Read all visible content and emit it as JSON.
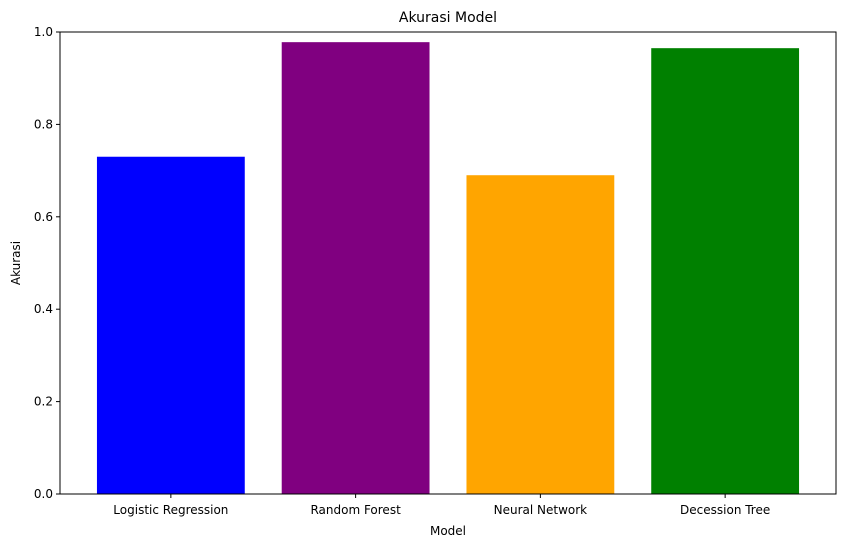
{
  "chart_data": {
    "type": "bar",
    "title": "Akurasi Model",
    "xlabel": "Model",
    "ylabel": "Akurasi",
    "categories": [
      "Logistic Regression",
      "Random Forest",
      "Neural Network",
      "Decession Tree"
    ],
    "values": [
      0.73,
      0.978,
      0.69,
      0.965
    ],
    "colors": [
      "#0000ff",
      "#800080",
      "#ffa500",
      "#008000"
    ],
    "ylim": [
      0,
      1.0
    ],
    "yticks": [
      0.0,
      0.2,
      0.4,
      0.6,
      0.8,
      1.0
    ],
    "ytick_labels": [
      "0.0",
      "0.2",
      "0.4",
      "0.6",
      "0.8",
      "1.0"
    ],
    "grid": false,
    "legend": false
  }
}
